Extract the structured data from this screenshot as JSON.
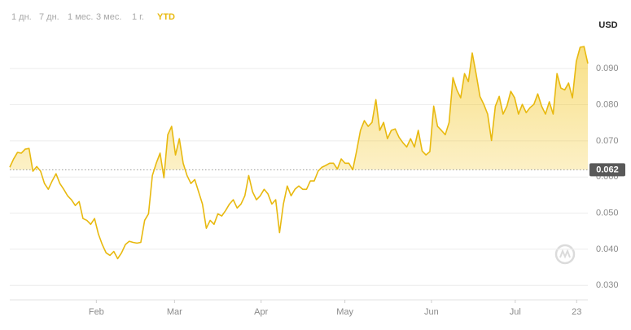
{
  "tabs": [
    "1 дн.",
    "7 дн.",
    "1 мес.",
    "3 мес.",
    "1 г.",
    "YTD"
  ],
  "selected_tab": 5,
  "chart_data": {
    "type": "line",
    "currency_label": "USD",
    "color": "#e8b90f",
    "grid": true,
    "xlim": [
      0,
      207
    ],
    "xticks": [
      {
        "value": 31,
        "label": "Feb"
      },
      {
        "value": 59,
        "label": "Mar"
      },
      {
        "value": 90,
        "label": "Apr"
      },
      {
        "value": 120,
        "label": "May"
      },
      {
        "value": 151,
        "label": "Jun"
      },
      {
        "value": 181,
        "label": "Jul"
      },
      {
        "value": 203,
        "label": "23"
      }
    ],
    "ylim": [
      0.026,
      0.0977
    ],
    "yticks": [
      {
        "value": 0.03,
        "label": "0.030"
      },
      {
        "value": 0.04,
        "label": "0.040"
      },
      {
        "value": 0.05,
        "label": "0.050"
      },
      {
        "value": 0.06,
        "label": "0.060"
      },
      {
        "value": 0.07,
        "label": "0.070"
      },
      {
        "value": 0.08,
        "label": "0.080"
      },
      {
        "value": 0.09,
        "label": "0.090"
      }
    ],
    "baseline": 0.062,
    "values": [
      0.0627,
      0.065,
      0.0668,
      0.0666,
      0.0677,
      0.0679,
      0.0616,
      0.0629,
      0.0616,
      0.0582,
      0.0566,
      0.0589,
      0.0609,
      0.0582,
      0.0566,
      0.0548,
      0.0537,
      0.0521,
      0.0532,
      0.0485,
      0.048,
      0.0469,
      0.0485,
      0.0442,
      0.0413,
      0.039,
      0.0383,
      0.0394,
      0.0374,
      0.039,
      0.0413,
      0.0422,
      0.0419,
      0.0417,
      0.0419,
      0.048,
      0.0498,
      0.0604,
      0.0638,
      0.0666,
      0.0598,
      0.0717,
      0.074,
      0.0661,
      0.0706,
      0.0638,
      0.0604,
      0.0582,
      0.0593,
      0.0559,
      0.0525,
      0.0458,
      0.048,
      0.0469,
      0.0498,
      0.0492,
      0.0507,
      0.0525,
      0.0537,
      0.0514,
      0.0525,
      0.0548,
      0.0604,
      0.0559,
      0.0537,
      0.0548,
      0.0566,
      0.0553,
      0.0525,
      0.0537,
      0.0446,
      0.0525,
      0.0575,
      0.0548,
      0.0566,
      0.0575,
      0.0566,
      0.0566,
      0.0589,
      0.0589,
      0.0616,
      0.0627,
      0.0632,
      0.0638,
      0.0638,
      0.0622,
      0.065,
      0.0638,
      0.0638,
      0.062,
      0.0672,
      0.0729,
      0.0756,
      0.074,
      0.0751,
      0.0814,
      0.0729,
      0.0751,
      0.0706,
      0.0729,
      0.0733,
      0.071,
      0.0695,
      0.0683,
      0.0706,
      0.0683,
      0.0729,
      0.0672,
      0.0661,
      0.067,
      0.0796,
      0.074,
      0.0729,
      0.0717,
      0.0751,
      0.0875,
      0.0841,
      0.0819,
      0.0886,
      0.0864,
      0.0943,
      0.0886,
      0.0823,
      0.0801,
      0.0774,
      0.0701,
      0.0796,
      0.0823,
      0.0774,
      0.0796,
      0.0837,
      0.0819,
      0.0774,
      0.0801,
      0.0778,
      0.0792,
      0.0801,
      0.083,
      0.0796,
      0.0774,
      0.0808,
      0.0774,
      0.0886,
      0.0846,
      0.0841,
      0.086,
      0.0819,
      0.092,
      0.0959,
      0.0961,
      0.0914
    ]
  }
}
